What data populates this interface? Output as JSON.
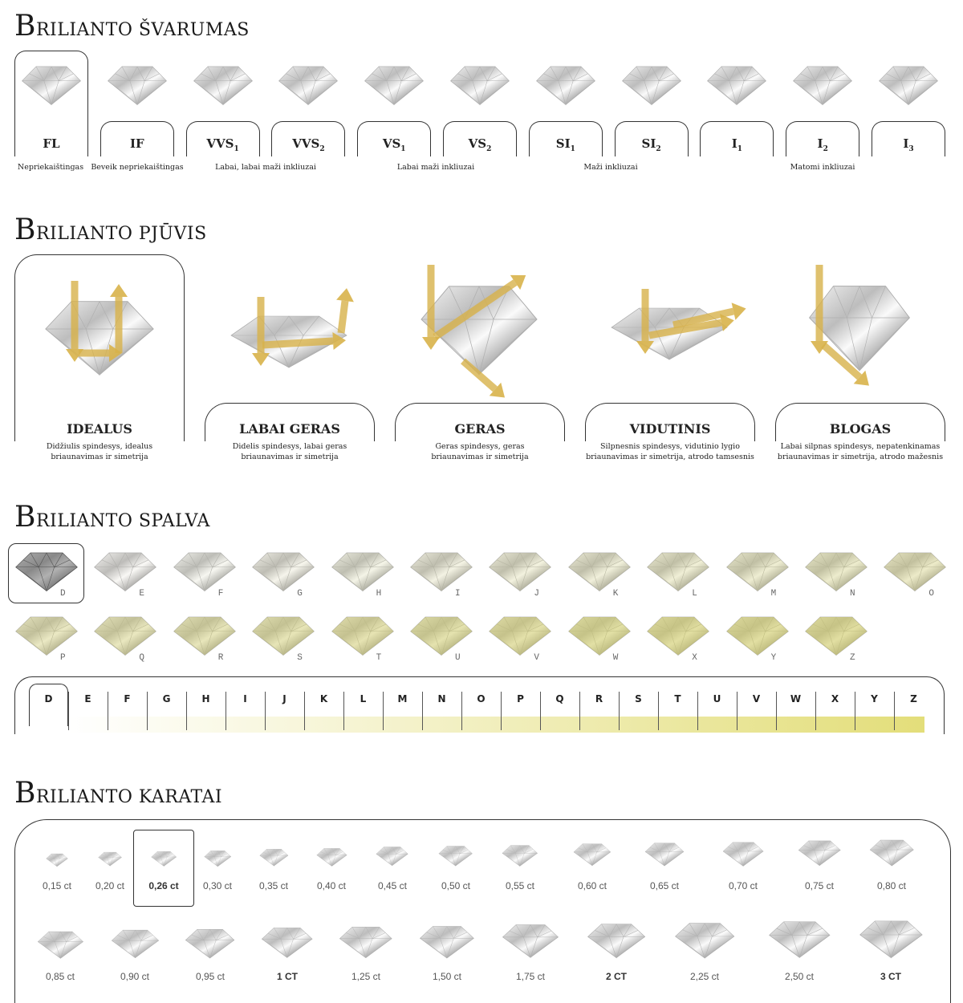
{
  "clarity": {
    "title": "BRILIANTO ŠVARUMAS",
    "grades": [
      {
        "name": "FL"
      },
      {
        "name": "IF"
      },
      {
        "name": "VVS",
        "sub": "1"
      },
      {
        "name": "VVS",
        "sub": "2"
      },
      {
        "name": "VS",
        "sub": "1"
      },
      {
        "name": "VS",
        "sub": "2"
      },
      {
        "name": "SI",
        "sub": "1"
      },
      {
        "name": "SI",
        "sub": "2"
      },
      {
        "name": "I",
        "sub": "1"
      },
      {
        "name": "I",
        "sub": "2"
      },
      {
        "name": "I",
        "sub": "3"
      }
    ],
    "descriptions": [
      "Nepriekaištingas",
      "Beveik nepriekaištingas",
      "Labai, labai maži inkliuzai",
      "Labai maži inkliuzai",
      "Maži inkliuzai",
      "Matomi inkliuzai"
    ]
  },
  "cut": {
    "title": "BRILIANTO PJŪVIS",
    "items": [
      {
        "label": "IDEALUS",
        "description": [
          "Didžiulis spindesys, idealus",
          "briaunavimas ir simetrija"
        ]
      },
      {
        "label": "LABAI GERAS",
        "description": [
          "Didelis spindesys, labai geras",
          "briaunavimas ir simetrija"
        ]
      },
      {
        "label": "GERAS",
        "description": [
          "Geras spindesys, geras",
          "briaunavimas ir simetrija"
        ]
      },
      {
        "label": "VIDUTINIS",
        "description": [
          "Silpnesnis spindesys, vidutinio lygio",
          "briaunavimas ir simetrija, atrodo tamsesnis"
        ]
      },
      {
        "label": "BLOGAS",
        "description": [
          "Labai silpnas spindesys, nepatenkinamas",
          "briaunavimas ir simetrija, atrodo mažesnis"
        ]
      }
    ]
  },
  "color": {
    "title": "BRILIANTO SPALVA",
    "grades": [
      "D",
      "E",
      "F",
      "G",
      "H",
      "I",
      "J",
      "K",
      "L",
      "M",
      "N",
      "O",
      "P",
      "Q",
      "R",
      "S",
      "T",
      "U",
      "V",
      "W",
      "X",
      "Y",
      "Z"
    ]
  },
  "carat": {
    "title": "BRILIANTO KARATAI",
    "sizes": [
      "0,15 ct",
      "0,20 ct",
      "0,26 ct",
      "0,30 ct",
      "0,35 ct",
      "0,40 ct",
      "0,45 ct",
      "0,50 ct",
      "0,55 ct",
      "0,60 ct",
      "0,65 ct",
      "0,70 ct",
      "0,75 ct",
      "0,80 ct",
      "0,85 ct",
      "0,90 ct",
      "0,95 ct",
      "1 CT",
      "1,25 ct",
      "1,50 ct",
      "1,75 ct",
      "2 CT",
      "2,25 ct",
      "2,50 ct",
      "3 CT"
    ]
  }
}
